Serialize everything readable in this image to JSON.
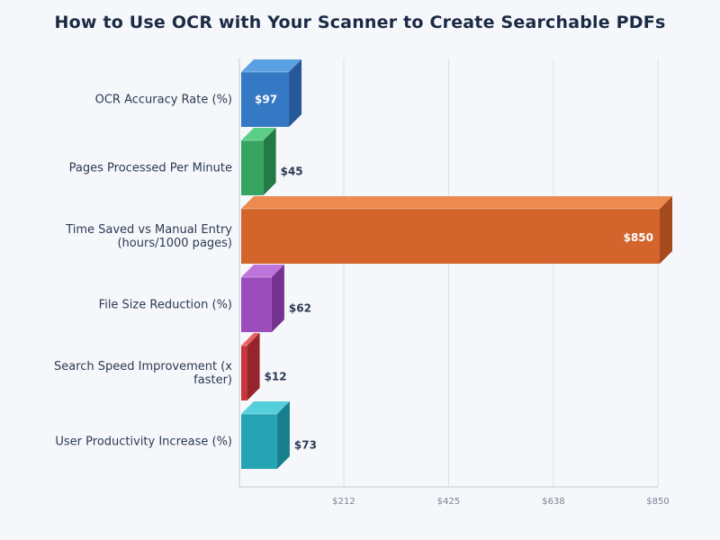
{
  "chart_data": {
    "type": "bar",
    "orientation": "horizontal",
    "title": "How to Use OCR with Your Scanner to Create Searchable PDFs",
    "categories": [
      "OCR Accuracy Rate (%)",
      "Pages Processed Per Minute",
      "Time Saved vs Manual Entry (hours/1000 pages)",
      "File Size Reduction (%)",
      "Search Speed Improvement (x faster)",
      "User Productivity Increase (%)"
    ],
    "values": [
      97,
      45,
      850,
      62,
      12,
      73
    ],
    "value_labels": [
      "$97",
      "$45",
      "$850",
      "$62",
      "$12",
      "$73"
    ],
    "xlim": [
      0,
      850
    ],
    "x_ticks": [
      212,
      425,
      638,
      850
    ],
    "x_tick_labels": [
      "$212",
      "$425",
      "$638",
      "$850"
    ],
    "grid": "vertical",
    "legend": "none",
    "colors": [
      {
        "front": "#3578c4",
        "top": "#5ba0e0",
        "side": "#25599a"
      },
      {
        "front": "#36a562",
        "top": "#5ccf87",
        "side": "#247a45"
      },
      {
        "front": "#d2642c",
        "top": "#ec8a50",
        "side": "#a54a1d"
      },
      {
        "front": "#9b4dbc",
        "top": "#be74db",
        "side": "#74338f"
      },
      {
        "front": "#c9363c",
        "top": "#e86268",
        "side": "#97242a"
      },
      {
        "front": "#27a4b4",
        "top": "#55cfdb",
        "side": "#18808d"
      }
    ]
  }
}
